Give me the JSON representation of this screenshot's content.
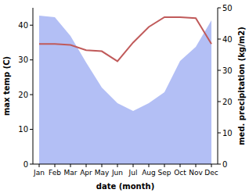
{
  "chart_data": {
    "type": "line",
    "xlabel": "date (month)",
    "ylabel": "max temp (C)",
    "y2label": "med. precipitation (kg/m2)",
    "categories": [
      "Jan",
      "Feb",
      "Mar",
      "Apr",
      "May",
      "Jun",
      "Jul",
      "Aug",
      "Sep",
      "Oct",
      "Nov",
      "Dec"
    ],
    "series": [
      {
        "name": "med. precipitation",
        "type": "area",
        "axis": "y2",
        "color": "#b3bff5",
        "values": [
          47.5,
          47,
          41,
          32.5,
          24.5,
          19.5,
          17,
          19.5,
          23,
          33,
          37.5,
          46
        ]
      },
      {
        "name": "max temp",
        "type": "line",
        "color": "#c05a5a",
        "values": [
          34.6,
          34.6,
          34.3,
          32.8,
          32.5,
          29.6,
          35,
          39.5,
          42.3,
          42.3,
          42,
          34.6
        ]
      }
    ],
    "ylim": [
      0,
      45
    ],
    "yticks": [
      0,
      10,
      20,
      30,
      40
    ],
    "y2lim": [
      0,
      50
    ],
    "y2ticks": [
      0,
      10,
      20,
      30,
      40,
      50
    ]
  }
}
